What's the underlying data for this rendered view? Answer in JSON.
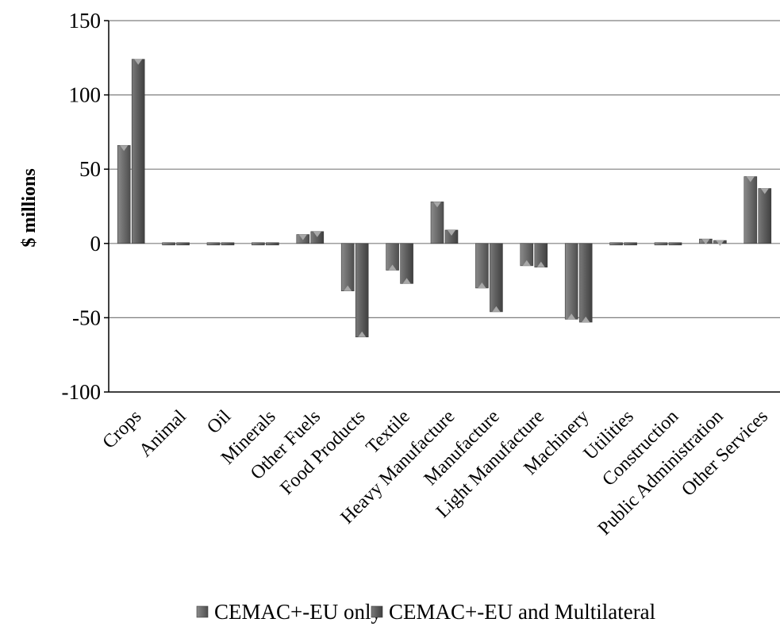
{
  "chart_data": {
    "type": "bar",
    "title": "",
    "xlabel": "",
    "ylabel": "$ millions",
    "ylim": [
      -100,
      150
    ],
    "yticks": [
      150,
      100,
      50,
      0,
      -50,
      -100
    ],
    "ytick_labels": [
      "150",
      "100",
      "50",
      "0",
      "-50",
      "-100"
    ],
    "grid": true,
    "legend_position": "bottom",
    "categories": [
      "Crops",
      "Animal",
      "Oil",
      "Minerals",
      "Other Fuels",
      "Food Products",
      "Textile",
      "Heavy Manufacture",
      "Manufacture",
      "Light Manufacture",
      "Machinery",
      "Utilities",
      "Construction",
      "Public Administration",
      "Other Services"
    ],
    "series": [
      {
        "name": "CEMAC+-EU only",
        "color": "#6e6e6e",
        "values": [
          66,
          0,
          0,
          0,
          6,
          -32,
          -18,
          28,
          -30,
          -15,
          -51,
          0,
          1,
          3,
          45
        ]
      },
      {
        "name": "CEMAC+-EU and Multilateral",
        "color": "#5a5a5a",
        "values": [
          124,
          0,
          0,
          0,
          8,
          -63,
          -27,
          9,
          -46,
          -16,
          -53,
          0,
          1,
          2,
          37
        ]
      }
    ]
  }
}
